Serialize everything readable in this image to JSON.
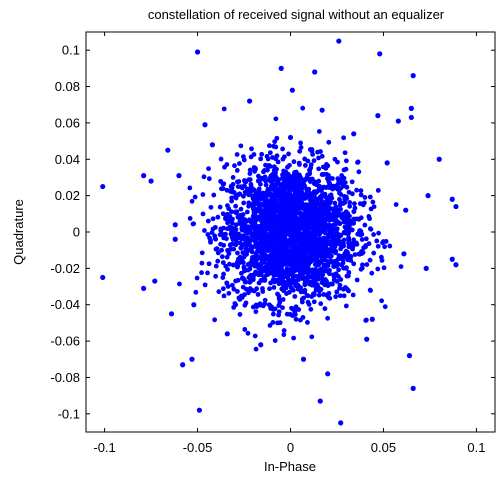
{
  "chart_data": {
    "type": "scatter",
    "title": "constellation of received signal without an equalizer",
    "xlabel": "In-Phase",
    "ylabel": "Quadrature",
    "xlim": [
      -0.11,
      0.11
    ],
    "ylim": [
      -0.11,
      0.11
    ],
    "xticks": [
      -0.1,
      -0.05,
      0,
      0.05,
      0.1
    ],
    "xtick_labels": [
      "-0.1",
      "-0.05",
      "0",
      "0.05",
      "0.1"
    ],
    "yticks": [
      0.1,
      0.08,
      0.06,
      0.04,
      0.02,
      0,
      -0.02,
      -0.04,
      -0.06,
      -0.08,
      -0.1
    ],
    "ytick_labels": [
      "0.1",
      "0.08",
      "0.06",
      "0.04",
      "0.02",
      "0",
      "-0.02",
      "-0.04",
      "-0.06",
      "-0.08",
      "-0.1"
    ],
    "grid": false,
    "legend": "none",
    "marker_color": "#0000ff",
    "series": [
      {
        "x": [
          -0.101,
          -0.101,
          0.026,
          0.027,
          -0.05,
          0.048,
          -0.06,
          0.08,
          0.087,
          0.089,
          0.087,
          0.089,
          -0.079,
          -0.079,
          -0.075,
          -0.073,
          0.066,
          0.066,
          0.065,
          0.064,
          -0.053,
          -0.049,
          -0.058,
          0.013,
          0.047,
          0.016,
          -0.046,
          0.041,
          0.058,
          0.065,
          -0.062,
          -0.062,
          0.062,
          0.061,
          0.001,
          0.02,
          -0.022,
          0.007,
          -0.005,
          -0.066,
          -0.064,
          0.074,
          0.073,
          0.0,
          0.017,
          -0.016,
          0.034,
          -0.034,
          0.052,
          -0.052,
          0.044,
          -0.042
        ],
        "y": [
          0.025,
          -0.025,
          0.105,
          -0.105,
          0.099,
          0.098,
          0.031,
          0.04,
          0.018,
          -0.018,
          -0.015,
          0.014,
          0.031,
          -0.031,
          0.028,
          -0.027,
          0.086,
          -0.086,
          0.068,
          -0.068,
          -0.07,
          -0.098,
          -0.073,
          0.088,
          0.064,
          -0.093,
          0.059,
          -0.059,
          0.061,
          0.063,
          0.004,
          -0.004,
          0.012,
          -0.012,
          0.078,
          -0.078,
          0.072,
          -0.07,
          0.09,
          0.045,
          -0.045,
          0.02,
          -0.02,
          0.052,
          0.067,
          -0.062,
          0.054,
          -0.056,
          0.038,
          -0.04,
          -0.048,
          0.048
        ]
      }
    ]
  }
}
